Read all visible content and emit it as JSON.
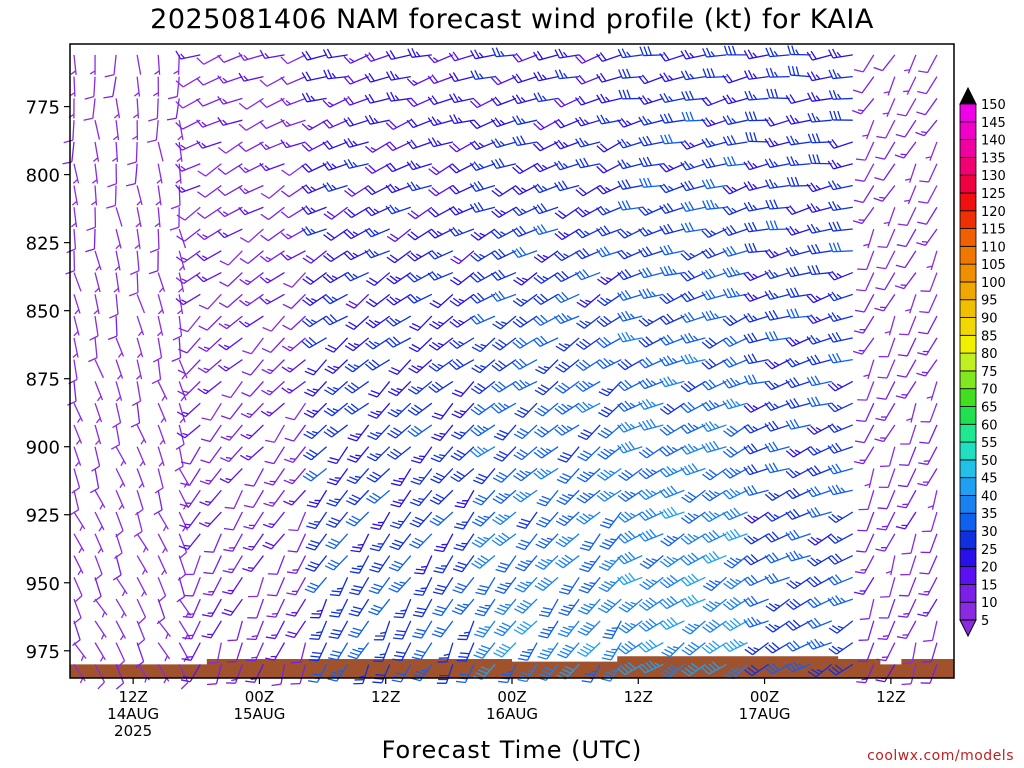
{
  "chart_data": {
    "type": "wind-barb time-height",
    "title": "2025081406 NAM forecast wind profile (kt) for KAIA",
    "xlabel": "Forecast Time (UTC)",
    "ylabel": "",
    "units": "kt",
    "x_ticks": [
      {
        "line1": "12Z",
        "line2": "14AUG",
        "line3": "2025"
      },
      {
        "line1": "00Z",
        "line2": "15AUG",
        "line3": ""
      },
      {
        "line1": "12Z",
        "line2": "",
        "line3": ""
      },
      {
        "line1": "00Z",
        "line2": "16AUG",
        "line3": ""
      },
      {
        "line1": "12Z",
        "line2": "",
        "line3": ""
      },
      {
        "line1": "00Z",
        "line2": "17AUG",
        "line3": ""
      },
      {
        "line1": "12Z",
        "line2": "",
        "line3": ""
      }
    ],
    "x_tick_hours": [
      6,
      18,
      30,
      42,
      54,
      66,
      78
    ],
    "x_range_hours": [
      0,
      84
    ],
    "time_step_hours": 2,
    "y_ticks": [
      "775",
      "800",
      "825",
      "850",
      "875",
      "900",
      "925",
      "950",
      "975"
    ],
    "y_tick_values": [
      775,
      800,
      825,
      850,
      875,
      900,
      925,
      950,
      975
    ],
    "y_range_hpa": [
      752,
      985
    ],
    "pressure_step_hpa": 8,
    "terrain_color": "#a0522d",
    "terrain_hpa": [
      [
        0,
        980
      ],
      [
        13,
        980
      ],
      [
        13,
        978
      ],
      [
        42,
        978
      ],
      [
        42,
        979
      ],
      [
        52,
        979
      ],
      [
        52,
        977
      ],
      [
        73,
        977
      ],
      [
        73,
        978
      ],
      [
        77,
        978
      ],
      [
        77,
        980
      ],
      [
        79,
        980
      ],
      [
        79,
        978
      ],
      [
        84,
        978
      ]
    ],
    "colorbar": {
      "labels": [
        "5",
        "10",
        "15",
        "20",
        "25",
        "30",
        "35",
        "40",
        "45",
        "50",
        "55",
        "60",
        "65",
        "70",
        "75",
        "80",
        "85",
        "90",
        "95",
        "100",
        "105",
        "110",
        "115",
        "120",
        "125",
        "130",
        "135",
        "140",
        "145",
        "150"
      ],
      "colors": [
        "#8a2be2",
        "#7a1fe8",
        "#5a10f0",
        "#2a10e8",
        "#1030e0",
        "#1060f0",
        "#1880f0",
        "#20a0f0",
        "#20c0e8",
        "#20e0c0",
        "#20e890",
        "#20e050",
        "#40e020",
        "#80e820",
        "#c0f020",
        "#f0f000",
        "#f0d800",
        "#f0c000",
        "#f0a800",
        "#f09000",
        "#f07800",
        "#f06000",
        "#f03000",
        "#f01010",
        "#f00040",
        "#f00070",
        "#f000a0",
        "#f000c8",
        "#f000e8",
        "#000000"
      ],
      "under_color": "#8a2be2",
      "over_color": "#000000"
    },
    "wind_regimes": [
      {
        "t0": 0,
        "t1": 12,
        "speed_upper_kt": 6,
        "speed_lower_kt": 7,
        "dir_upper_deg": 180,
        "dir_lower_deg": 150
      },
      {
        "t0": 12,
        "t1": 24,
        "speed_upper_kt": 12,
        "speed_lower_kt": 14,
        "dir_upper_deg": 250,
        "dir_lower_deg": 200
      },
      {
        "t0": 24,
        "t1": 40,
        "speed_upper_kt": 20,
        "speed_lower_kt": 30,
        "dir_upper_deg": 255,
        "dir_lower_deg": 205
      },
      {
        "t0": 40,
        "t1": 54,
        "speed_upper_kt": 22,
        "speed_lower_kt": 38,
        "dir_upper_deg": 255,
        "dir_lower_deg": 215
      },
      {
        "t0": 54,
        "t1": 66,
        "speed_upper_kt": 25,
        "speed_lower_kt": 40,
        "dir_upper_deg": 260,
        "dir_lower_deg": 235
      },
      {
        "t0": 66,
        "t1": 76,
        "speed_upper_kt": 25,
        "speed_lower_kt": 30,
        "dir_upper_deg": 265,
        "dir_lower_deg": 240
      },
      {
        "t0": 76,
        "t1": 84,
        "speed_upper_kt": 9,
        "speed_lower_kt": 12,
        "dir_upper_deg": 210,
        "dir_lower_deg": 200
      }
    ]
  },
  "credit": "coolwx.com/models"
}
